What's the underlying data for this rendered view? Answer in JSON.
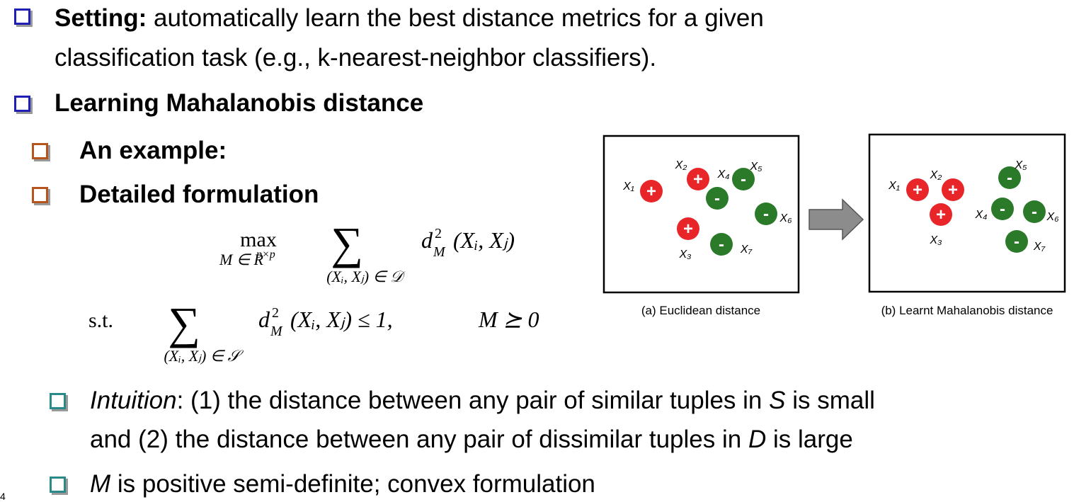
{
  "bullets": [
    {
      "lines": [
        [
          "Setting:",
          " automatically learn the best distance metrics for a given"
        ],
        [
          "classification task (e.g., k-nearest-neighbor classifiers)."
        ]
      ]
    },
    {
      "lines": [
        [
          "Learning Mahalanobis distance"
        ]
      ]
    },
    {
      "lines": [
        [
          "An example:"
        ]
      ]
    },
    {
      "lines": [
        [
          "Detailed formulation"
        ]
      ]
    },
    {
      "lines": [
        [
          "Intuition",
          ": (1) the distance between any pair of similar tuples in ",
          "S",
          " is small"
        ],
        [
          "and (2) the distance between any pair of dissimilar tuples in ",
          "D",
          " is large"
        ]
      ]
    },
    {
      "lines": [
        [
          "M",
          " is positive semi-definite; convex formulation"
        ]
      ]
    }
  ],
  "formula": {
    "objective": {
      "op": "max",
      "op_sub": "M ∈ R",
      "op_sub_sup": "p×p",
      "sum": "∑",
      "sum_sub": "(Xᵢ, Xⱼ) ∈ 𝒟",
      "term": "d",
      "term_sup": "2",
      "term_sub": "M",
      "term_args": "(Xᵢ, Xⱼ)"
    },
    "constraint": {
      "label": "s.t.",
      "sum": "∑",
      "sum_sub": "(Xᵢ, Xⱼ) ∈ 𝒮",
      "term": "d",
      "term_sup": "2",
      "term_sub": "M",
      "term_args": "(Xᵢ, Xⱼ) ≤ 1,",
      "cond": "M ⪰ 0"
    }
  },
  "figure": {
    "panels": [
      {
        "caption": "(a) Euclidean distance",
        "points": [
          {
            "label": "X₁",
            "sign": "+"
          },
          {
            "label": "X₂",
            "sign": "+"
          },
          {
            "label": "X₃",
            "sign": "+"
          },
          {
            "label": "X₄",
            "sign": "-"
          },
          {
            "label": "X₅",
            "sign": "-"
          },
          {
            "label": "X₆",
            "sign": "-"
          },
          {
            "label": "X₇",
            "sign": "-"
          }
        ]
      },
      {
        "caption": "(b) Learnt Mahalanobis distance",
        "points": [
          {
            "label": "X₁",
            "sign": "+"
          },
          {
            "label": "X₂",
            "sign": "+"
          },
          {
            "label": "X₃",
            "sign": "+"
          },
          {
            "label": "X₄",
            "sign": "-"
          },
          {
            "label": "X₅",
            "sign": "-"
          },
          {
            "label": "X₆",
            "sign": "-"
          },
          {
            "label": "X₇",
            "sign": "-"
          }
        ]
      }
    ]
  },
  "page_number": "4"
}
